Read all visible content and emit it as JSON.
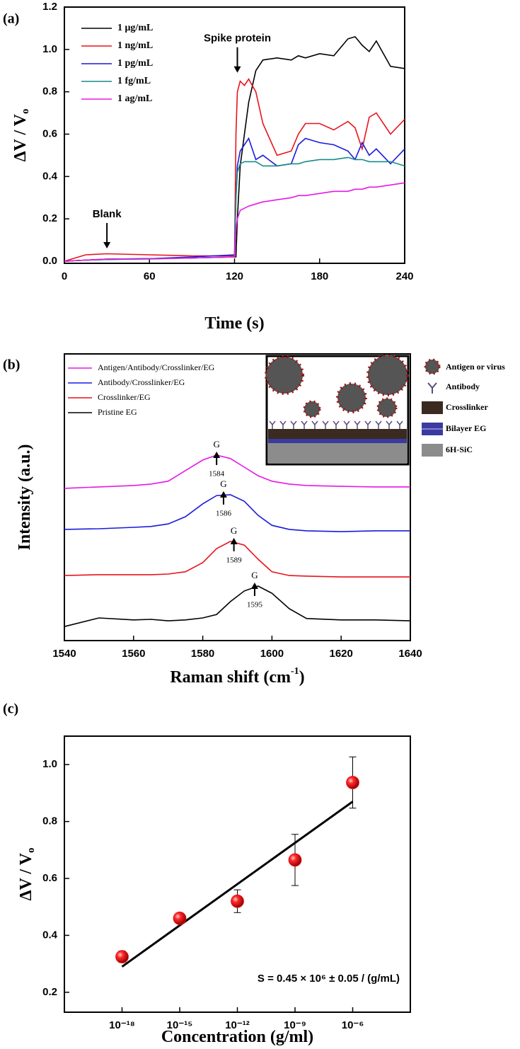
{
  "chart_data": [
    {
      "type": "line",
      "panel": "(a)",
      "xlabel": "Time (s)",
      "ylabel": "ΔV / V",
      "ylabel_sub": "o",
      "x": [
        0,
        15,
        30,
        60,
        90,
        120,
        121,
        122,
        124,
        127,
        130,
        135,
        140,
        150,
        160,
        165,
        170,
        180,
        190,
        200,
        205,
        210,
        215,
        220,
        230,
        240
      ],
      "xlim": [
        0,
        240
      ],
      "xticks": [
        0,
        60,
        120,
        180,
        240
      ],
      "ylim": [
        -0.01,
        1.2
      ],
      "yticks": [
        {
          "value": 0,
          "label": "0.0"
        },
        0.2,
        0.4,
        0.6,
        0.8,
        {
          "value": 1,
          "label": "1.0"
        },
        1.2
      ],
      "legend": "upper left",
      "series": [
        {
          "name": "1 μg/mL",
          "color": "#000000",
          "values": [
            0,
            0.005,
            0.01,
            0.012,
            0.015,
            0.02,
            0.02,
            0.2,
            0.45,
            0.6,
            0.75,
            0.9,
            0.95,
            0.96,
            0.95,
            0.97,
            0.96,
            0.98,
            0.97,
            1.05,
            1.06,
            1.02,
            0.99,
            1.04,
            0.92,
            0.91
          ]
        },
        {
          "name": "1 ng/mL",
          "color": "#e8141b",
          "values": [
            0,
            0.03,
            0.035,
            0.03,
            0.025,
            0.025,
            0.6,
            0.8,
            0.85,
            0.83,
            0.86,
            0.8,
            0.65,
            0.5,
            0.52,
            0.6,
            0.65,
            0.65,
            0.62,
            0.66,
            0.63,
            0.53,
            0.68,
            0.7,
            0.6,
            0.67
          ]
        },
        {
          "name": "1 pg/mL",
          "color": "#1a1adb",
          "values": [
            0,
            0.005,
            0.008,
            0.012,
            0.02,
            0.03,
            0.3,
            0.45,
            0.52,
            0.55,
            0.58,
            0.48,
            0.5,
            0.45,
            0.46,
            0.55,
            0.58,
            0.56,
            0.55,
            0.52,
            0.48,
            0.56,
            0.5,
            0.53,
            0.46,
            0.53
          ]
        },
        {
          "name": "1 fg/mL",
          "color": "#1a8a8a",
          "values": [
            0,
            0.005,
            0.008,
            0.01,
            0.015,
            0.02,
            0.3,
            0.42,
            0.46,
            0.47,
            0.47,
            0.47,
            0.45,
            0.45,
            0.46,
            0.46,
            0.47,
            0.48,
            0.48,
            0.49,
            0.48,
            0.48,
            0.47,
            0.47,
            0.47,
            0.45
          ]
        },
        {
          "name": "1 ag/mL",
          "color": "#e619e6",
          "values": [
            0,
            0.005,
            0.01,
            0.012,
            0.015,
            0.02,
            0.15,
            0.2,
            0.24,
            0.25,
            0.26,
            0.27,
            0.28,
            0.29,
            0.3,
            0.31,
            0.31,
            0.32,
            0.33,
            0.33,
            0.34,
            0.34,
            0.35,
            0.35,
            0.36,
            0.37
          ]
        }
      ],
      "annotations": [
        {
          "text": "Spike protein",
          "x": 122,
          "y": 0.89
        },
        {
          "text": "Blank",
          "x": 30,
          "y": 0.06
        }
      ]
    },
    {
      "type": "line",
      "panel": "(b)",
      "xlabel": "Raman shift (cm",
      "xlabel_sup": "-1",
      "xlabel_end": ")",
      "ylabel": "Intensity (a.u.)",
      "x": [
        1540,
        1550,
        1560,
        1565,
        1570,
        1575,
        1580,
        1584,
        1588,
        1592,
        1596,
        1600,
        1605,
        1610,
        1620,
        1630,
        1640
      ],
      "xlim": [
        1540,
        1640
      ],
      "xticks": [
        1540,
        1560,
        1580,
        1600,
        1620,
        1640
      ],
      "ylim": [
        0,
        100
      ],
      "legend": "upper left",
      "series": [
        {
          "name": "Antigen/Antibody/Crosslinker/EG",
          "color": "#e619e6",
          "values": [
            53.1,
            53.6,
            54.1,
            54.6,
            55.6,
            59.3,
            63.0,
            64.7,
            63.5,
            60.5,
            57.5,
            55.6,
            54.6,
            54.1,
            53.8,
            53.6,
            53.6
          ]
        },
        {
          "name": "Antibody/Crosslinker/EG",
          "color": "#1a1adb",
          "values": [
            38.8,
            39.0,
            39.5,
            39.8,
            40.7,
            43.2,
            47.7,
            50.6,
            50.9,
            48.6,
            43.7,
            40.2,
            38.8,
            38.3,
            38.0,
            38.3,
            38.3
          ]
        },
        {
          "name": "Crosslinker/EG",
          "color": "#e8141b",
          "values": [
            22.7,
            23.0,
            23.0,
            23.0,
            23.2,
            24.0,
            27.2,
            32.1,
            34.6,
            33.3,
            28.4,
            24.0,
            22.7,
            22.5,
            22.2,
            22.2,
            22.2
          ]
        },
        {
          "name": "Pristine EG",
          "color": "#000000",
          "values": [
            4.9,
            7.9,
            7.2,
            7.4,
            6.9,
            7.2,
            7.9,
            9.1,
            13.6,
            17.3,
            19.0,
            16.5,
            11.1,
            7.7,
            7.2,
            7.2,
            6.9
          ]
        }
      ],
      "peaks": [
        {
          "label": "G",
          "peak": 1584
        },
        {
          "label": "G",
          "peak": 1586
        },
        {
          "label": "G",
          "peak": 1589
        },
        {
          "label": "G",
          "peak": 1595
        }
      ],
      "inset_legend": [
        "Antigen or virus",
        "Antibody",
        "Crosslinker",
        "Bilayer EG",
        "6H-SiC"
      ]
    },
    {
      "type": "scatter",
      "panel": "(c)",
      "xlabel": "Concentration (g/ml)",
      "ylabel": "ΔV / V",
      "ylabel_sub": "o",
      "x": [
        1e-18,
        1e-15,
        1e-12,
        1e-09,
        1e-06
      ],
      "values": [
        0.325,
        0.46,
        0.52,
        0.665,
        0.937
      ],
      "errors": [
        0.02,
        0.01,
        0.04,
        0.09,
        0.09
      ],
      "color": "#e8141b",
      "xscale": "log",
      "xlim": [
        1e-21,
        0.001
      ],
      "xticks": [
        {
          "value": 1e-18,
          "label": "10⁻¹⁸"
        },
        {
          "value": 1e-15,
          "label": "10⁻¹⁵"
        },
        {
          "value": 1e-12,
          "label": "10⁻¹²"
        },
        {
          "value": 1e-09,
          "label": "10⁻⁹"
        },
        {
          "value": 1e-06,
          "label": "10⁻⁶"
        }
      ],
      "ylim": [
        0.13,
        1.1
      ],
      "yticks": [
        0.2,
        0.4,
        0.6,
        0.8,
        {
          "value": 1,
          "label": "1.0"
        }
      ],
      "fit": {
        "x": [
          1e-18,
          1e-06
        ],
        "values": [
          0.29,
          0.87
        ]
      },
      "annotation": "S = 0.45 × 10⁶ ± 0.05 / (g/mL)"
    }
  ]
}
